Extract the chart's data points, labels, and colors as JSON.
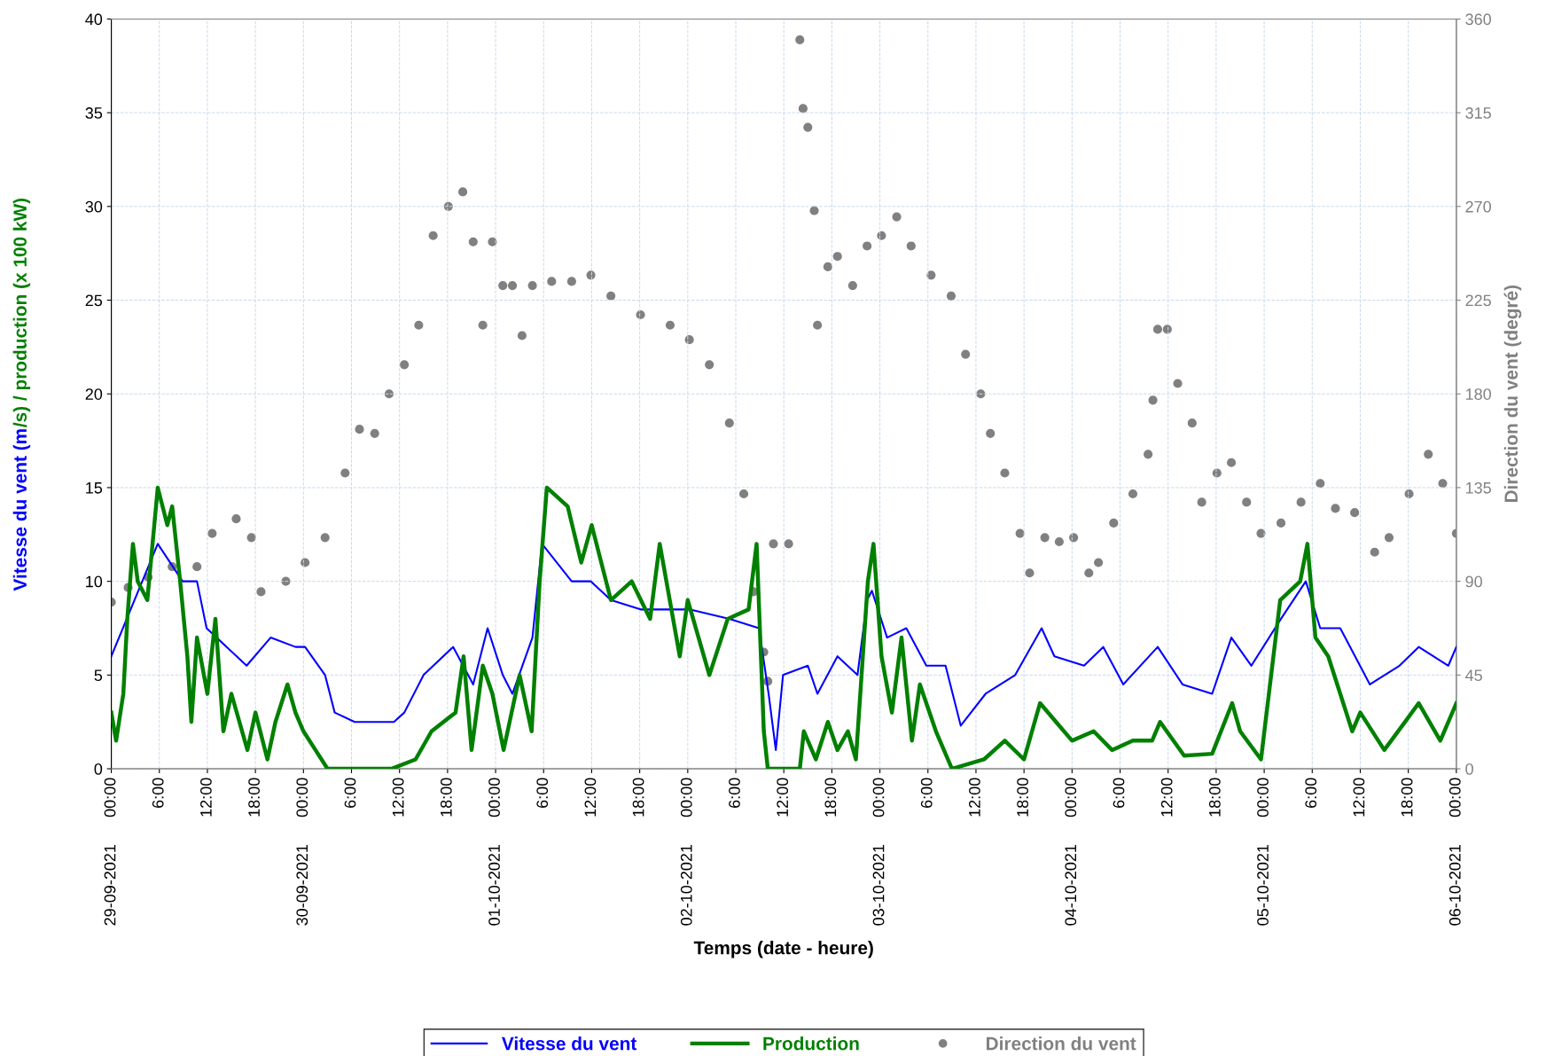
{
  "chart_data": {
    "type": "line",
    "xlabel": "Temps (date - heure)",
    "ylabel": "Vitesse du vent (m/s) / production (x 100 kW)",
    "y2label": "Direction du vent (degré)",
    "xlim": [
      "2021-09-29T00:00",
      "2021-10-06T00:00"
    ],
    "xticks": [
      {
        "value": "2021-09-29T00:00",
        "label": "29-09-2021      00:00"
      },
      {
        "value": "2021-09-29T06:00",
        "label": "6:00"
      },
      {
        "value": "2021-09-29T12:00",
        "label": "12:00"
      },
      {
        "value": "2021-09-29T18:00",
        "label": "18:00"
      },
      {
        "value": "2021-09-30T00:00",
        "label": "30-09-2021      00:00"
      },
      {
        "value": "2021-09-30T06:00",
        "label": "6:00"
      },
      {
        "value": "2021-09-30T12:00",
        "label": "12:00"
      },
      {
        "value": "2021-09-30T18:00",
        "label": "18:00"
      },
      {
        "value": "2021-10-01T00:00",
        "label": "01-10-2021      00:00"
      },
      {
        "value": "2021-10-01T06:00",
        "label": "6:00"
      },
      {
        "value": "2021-10-01T12:00",
        "label": "12:00"
      },
      {
        "value": "2021-10-01T18:00",
        "label": "18:00"
      },
      {
        "value": "2021-10-02T00:00",
        "label": "02-10-2021      00:00"
      },
      {
        "value": "2021-10-02T06:00",
        "label": "6:00"
      },
      {
        "value": "2021-10-02T12:00",
        "label": "12:00"
      },
      {
        "value": "2021-10-02T18:00",
        "label": "18:00"
      },
      {
        "value": "2021-10-03T00:00",
        "label": "03-10-2021      00:00"
      },
      {
        "value": "2021-10-03T06:00",
        "label": "6:00"
      },
      {
        "value": "2021-10-03T12:00",
        "label": "12:00"
      },
      {
        "value": "2021-10-03T18:00",
        "label": "18:00"
      },
      {
        "value": "2021-10-04T00:00",
        "label": "04-10-2021      00:00"
      },
      {
        "value": "2021-10-04T06:00",
        "label": "6:00"
      },
      {
        "value": "2021-10-04T12:00",
        "label": "12:00"
      },
      {
        "value": "2021-10-04T18:00",
        "label": "18:00"
      },
      {
        "value": "2021-10-05T00:00",
        "label": "05-10-2021      00:00"
      },
      {
        "value": "2021-10-05T06:00",
        "label": "6:00"
      },
      {
        "value": "2021-10-05T12:00",
        "label": "12:00"
      },
      {
        "value": "2021-10-05T18:00",
        "label": "18:00"
      },
      {
        "value": "2021-10-06T00:00",
        "label": "06-10-2021      00:00"
      }
    ],
    "ylim": [
      0,
      40
    ],
    "yticks": [
      0,
      5,
      10,
      15,
      20,
      25,
      30,
      35,
      40
    ],
    "y2lim": [
      0,
      360
    ],
    "y2ticks": [
      0,
      45,
      90,
      135,
      180,
      225,
      270,
      315,
      360
    ],
    "grid": true,
    "legend": "bottom",
    "line_style": "solid",
    "series": [
      {
        "name": "Vitesse du vent",
        "color": "#0000ff",
        "x": [
          "2021-09-29T00:00",
          "2021-09-29T05:48",
          "2021-09-29T08:54",
          "2021-09-29T10:42",
          "2021-09-29T11:54",
          "2021-09-29T16:54",
          "2021-09-29T19:54",
          "2021-09-29T23:00",
          "2021-09-30T00:12",
          "2021-09-30T02:42",
          "2021-09-30T03:54",
          "2021-09-30T06:24",
          "2021-09-30T11:18",
          "2021-09-30T12:36",
          "2021-09-30T15:00",
          "2021-09-30T18:42",
          "2021-09-30T21:12",
          "2021-09-30T23:00",
          "2021-10-01T00:54",
          "2021-10-01T02:06",
          "2021-10-01T04:36",
          "2021-10-01T05:48",
          "2021-10-01T09:30",
          "2021-10-01T11:54",
          "2021-10-01T14:24",
          "2021-10-01T18:06",
          "2021-10-02T00:12",
          "2021-10-02T05:12",
          "2021-10-02T08:54",
          "2021-10-02T10:06",
          "2021-10-02T11:00",
          "2021-10-02T11:54",
          "2021-10-02T15:00",
          "2021-10-02T16:12",
          "2021-10-02T18:42",
          "2021-10-02T21:12",
          "2021-10-02T22:24",
          "2021-10-02T23:00",
          "2021-10-03T00:54",
          "2021-10-03T03:18",
          "2021-10-03T05:48",
          "2021-10-03T08:12",
          "2021-10-03T10:06",
          "2021-10-03T13:12",
          "2021-10-03T16:54",
          "2021-10-03T20:12",
          "2021-10-03T21:48",
          "2021-10-04T01:30",
          "2021-10-04T03:54",
          "2021-10-04T06:24",
          "2021-10-04T10:42",
          "2021-10-04T13:48",
          "2021-10-04T17:30",
          "2021-10-04T19:54",
          "2021-10-04T22:24",
          "2021-10-05T02:06",
          "2021-10-05T05:12",
          "2021-10-05T07:00",
          "2021-10-05T09:30",
          "2021-10-05T13:12",
          "2021-10-05T16:54",
          "2021-10-05T19:18",
          "2021-10-05T23:00",
          "2021-10-06T00:00"
        ],
        "values": [
          6,
          12,
          10,
          10,
          7.5,
          5.5,
          7,
          6.5,
          6.5,
          5,
          3,
          2.5,
          2.5,
          3,
          5,
          6.5,
          4.5,
          7.5,
          5,
          4,
          7,
          12,
          10,
          10,
          9,
          8.5,
          8.5,
          8,
          7.5,
          4,
          1,
          5,
          5.5,
          4,
          6,
          5,
          9,
          9.5,
          7,
          7.5,
          5.5,
          5.5,
          2.3,
          4,
          5,
          7.5,
          6,
          5.5,
          6.5,
          4.5,
          6.5,
          4.5,
          4,
          7,
          5.5,
          8,
          10,
          7.5,
          7.5,
          4.5,
          5.5,
          6.5,
          5.5,
          6.5
        ]
      },
      {
        "name": "Production",
        "color": "#008000",
        "x": [
          "2021-09-29T00:00",
          "2021-09-29T00:36",
          "2021-09-29T01:30",
          "2021-09-29T02:00",
          "2021-09-29T02:42",
          "2021-09-29T03:18",
          "2021-09-29T04:30",
          "2021-09-29T05:48",
          "2021-09-29T07:00",
          "2021-09-29T07:36",
          "2021-09-29T08:36",
          "2021-09-29T09:30",
          "2021-09-29T10:00",
          "2021-09-29T10:42",
          "2021-09-29T12:00",
          "2021-09-29T13:00",
          "2021-09-29T14:00",
          "2021-09-29T15:00",
          "2021-09-29T17:00",
          "2021-09-29T18:00",
          "2021-09-29T19:30",
          "2021-09-29T20:30",
          "2021-09-29T22:00",
          "2021-09-29T23:00",
          "2021-09-30T00:00",
          "2021-09-30T01:30",
          "2021-09-30T03:00",
          "2021-09-30T11:00",
          "2021-09-30T14:00",
          "2021-09-30T16:00",
          "2021-09-30T19:00",
          "2021-09-30T20:00",
          "2021-09-30T21:00",
          "2021-09-30T22:24",
          "2021-09-30T23:36",
          "2021-10-01T01:00",
          "2021-10-01T03:00",
          "2021-10-01T04:30",
          "2021-10-01T05:30",
          "2021-10-01T06:24",
          "2021-10-01T09:00",
          "2021-10-01T10:42",
          "2021-10-01T12:00",
          "2021-10-01T14:24",
          "2021-10-01T17:00",
          "2021-10-01T19:18",
          "2021-10-01T20:30",
          "2021-10-01T23:00",
          "2021-10-02T00:00",
          "2021-10-02T02:42",
          "2021-10-02T05:00",
          "2021-10-02T07:36",
          "2021-10-02T08:36",
          "2021-10-02T09:30",
          "2021-10-02T10:00",
          "2021-10-02T14:00",
          "2021-10-02T14:30",
          "2021-10-02T16:00",
          "2021-10-02T17:30",
          "2021-10-02T18:42",
          "2021-10-02T20:00",
          "2021-10-02T21:00",
          "2021-10-02T22:30",
          "2021-10-02T23:12",
          "2021-10-03T00:12",
          "2021-10-03T01:30",
          "2021-10-03T02:42",
          "2021-10-03T04:00",
          "2021-10-03T05:00",
          "2021-10-03T07:00",
          "2021-10-03T09:00",
          "2021-10-03T13:00",
          "2021-10-03T15:36",
          "2021-10-03T18:00",
          "2021-10-03T20:00",
          "2021-10-03T22:00",
          "2021-10-04T00:00",
          "2021-10-04T02:42",
          "2021-10-04T05:00",
          "2021-10-04T07:36",
          "2021-10-04T10:00",
          "2021-10-04T11:00",
          "2021-10-04T14:00",
          "2021-10-04T17:30",
          "2021-10-04T20:00",
          "2021-10-04T21:00",
          "2021-10-04T23:36",
          "2021-10-05T02:00",
          "2021-10-05T04:30",
          "2021-10-05T05:24",
          "2021-10-05T06:24",
          "2021-10-05T08:00",
          "2021-10-05T11:00",
          "2021-10-05T12:00",
          "2021-10-05T15:00",
          "2021-10-05T17:36",
          "2021-10-05T19:18",
          "2021-10-05T22:00",
          "2021-10-06T00:00"
        ],
        "values": [
          3,
          1.5,
          4,
          8,
          12,
          10,
          9,
          15,
          13,
          14,
          10,
          6,
          2.5,
          7,
          4,
          8,
          2,
          4,
          1,
          3,
          0.5,
          2.5,
          4.5,
          3,
          2,
          1,
          0,
          0,
          0.5,
          2,
          3,
          6,
          1,
          5.5,
          4,
          1,
          5,
          2,
          10,
          15,
          14,
          11,
          13,
          9,
          10,
          8,
          12,
          6,
          9,
          5,
          8,
          8.5,
          12,
          2,
          0,
          0,
          2,
          0.5,
          2.5,
          1,
          2,
          0.5,
          10,
          12,
          6,
          3,
          7,
          1.5,
          4.5,
          2,
          0,
          0.5,
          1.5,
          0.5,
          3.5,
          2.5,
          1.5,
          2,
          1,
          1.5,
          1.5,
          2.5,
          0.7,
          0.8,
          3.5,
          2,
          0.5,
          9,
          10,
          12,
          7,
          6,
          2,
          3,
          1,
          2.5,
          3.5,
          1.5,
          3.5
        ]
      },
      {
        "name": "Direction du vent",
        "color": "#808080",
        "type": "scatter",
        "axis": "y2",
        "marker": "circle",
        "x": [
          "2021-09-29T00:00",
          "2021-09-29T02:06",
          "2021-09-29T04:36",
          "2021-09-29T07:36",
          "2021-09-29T10:42",
          "2021-09-29T12:36",
          "2021-09-29T15:36",
          "2021-09-29T17:30",
          "2021-09-29T18:42",
          "2021-09-29T21:48",
          "2021-09-30T00:12",
          "2021-09-30T02:42",
          "2021-09-30T05:12",
          "2021-09-30T07:00",
          "2021-09-30T08:54",
          "2021-09-30T10:42",
          "2021-09-30T12:36",
          "2021-09-30T14:24",
          "2021-09-30T16:12",
          "2021-09-30T18:06",
          "2021-09-30T19:54",
          "2021-09-30T21:12",
          "2021-09-30T22:24",
          "2021-09-30T23:36",
          "2021-10-01T00:54",
          "2021-10-01T02:06",
          "2021-10-01T03:18",
          "2021-10-01T04:36",
          "2021-10-01T07:00",
          "2021-10-01T09:30",
          "2021-10-01T11:54",
          "2021-10-01T14:24",
          "2021-10-01T18:06",
          "2021-10-01T21:48",
          "2021-10-02T00:12",
          "2021-10-02T02:42",
          "2021-10-02T05:12",
          "2021-10-02T07:00",
          "2021-10-02T08:12",
          "2021-10-02T09:30",
          "2021-10-02T10:00",
          "2021-10-02T10:42",
          "2021-10-02T12:36",
          "2021-10-02T14:00",
          "2021-10-02T14:24",
          "2021-10-02T15:00",
          "2021-10-02T15:48",
          "2021-10-02T16:12",
          "2021-10-02T17:30",
          "2021-10-02T18:42",
          "2021-10-02T20:36",
          "2021-10-02T22:24",
          "2021-10-03T00:12",
          "2021-10-03T02:06",
          "2021-10-03T03:54",
          "2021-10-03T06:24",
          "2021-10-03T08:54",
          "2021-10-03T10:42",
          "2021-10-03T12:36",
          "2021-10-03T13:48",
          "2021-10-03T15:36",
          "2021-10-03T17:30",
          "2021-10-03T18:42",
          "2021-10-03T20:36",
          "2021-10-03T22:24",
          "2021-10-04T00:12",
          "2021-10-04T02:06",
          "2021-10-04T03:18",
          "2021-10-04T05:12",
          "2021-10-04T07:36",
          "2021-10-04T09:30",
          "2021-10-04T10:06",
          "2021-10-04T10:42",
          "2021-10-04T11:54",
          "2021-10-04T13:12",
          "2021-10-04T15:00",
          "2021-10-04T16:12",
          "2021-10-04T18:06",
          "2021-10-04T19:54",
          "2021-10-04T21:48",
          "2021-10-04T23:36",
          "2021-10-05T02:06",
          "2021-10-05T04:36",
          "2021-10-05T07:00",
          "2021-10-05T08:54",
          "2021-10-05T11:18",
          "2021-10-05T13:48",
          "2021-10-05T15:36",
          "2021-10-05T18:06",
          "2021-10-05T20:30",
          "2021-10-05T22:18",
          "2021-10-06T00:00"
        ],
        "values": [
          80,
          87,
          92,
          97,
          97,
          113,
          120,
          111,
          85,
          90,
          99,
          111,
          142,
          163,
          161,
          180,
          194,
          213,
          256,
          270,
          277,
          253,
          213,
          253,
          232,
          232,
          208,
          232,
          234,
          234,
          237,
          227,
          218,
          213,
          206,
          194,
          166,
          132,
          85,
          56,
          42,
          108,
          108,
          350,
          317,
          308,
          268,
          213,
          241,
          246,
          232,
          251,
          256,
          265,
          251,
          237,
          227,
          199,
          180,
          161,
          142,
          113,
          94,
          111,
          109,
          111,
          94,
          99,
          118,
          132,
          151,
          177,
          211,
          211,
          185,
          166,
          128,
          142,
          147,
          128,
          113,
          118,
          128,
          137,
          125,
          123,
          104,
          111,
          132,
          151,
          137,
          113
        ]
      }
    ]
  }
}
